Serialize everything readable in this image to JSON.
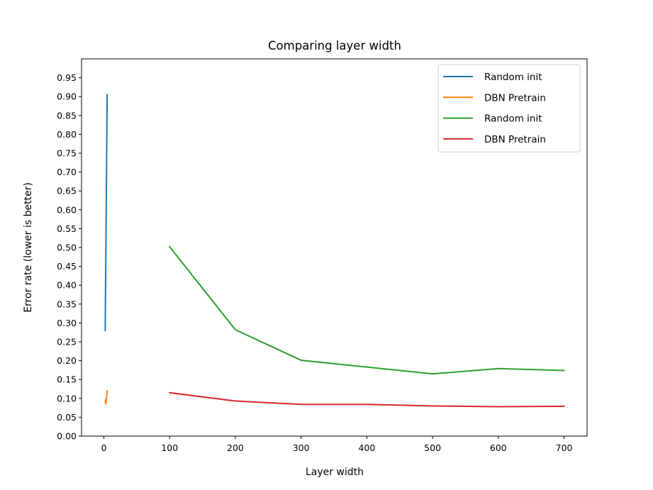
{
  "chart_data": {
    "type": "line",
    "title": "Comparing layer width",
    "xlabel": "Layer width",
    "ylabel": "Error rate (lower is better)",
    "xlim": [
      -34,
      735
    ],
    "ylim": [
      0.0,
      1.0
    ],
    "xticks": [
      0,
      100,
      200,
      300,
      400,
      500,
      600,
      700
    ],
    "xtick_labels": [
      "0",
      "100",
      "200",
      "300",
      "400",
      "500",
      "600",
      "700"
    ],
    "yticks": [
      0.0,
      0.05,
      0.1,
      0.15,
      0.2,
      0.25,
      0.3,
      0.35,
      0.4,
      0.45,
      0.5,
      0.55,
      0.6,
      0.65,
      0.7,
      0.75,
      0.8,
      0.85,
      0.9,
      0.95
    ],
    "ytick_labels": [
      "0.00",
      "0.05",
      "0.10",
      "0.15",
      "0.20",
      "0.25",
      "0.30",
      "0.35",
      "0.40",
      "0.45",
      "0.50",
      "0.55",
      "0.60",
      "0.65",
      "0.70",
      "0.75",
      "0.80",
      "0.85",
      "0.90",
      "0.95"
    ],
    "grid": false,
    "legend_position": "top-right",
    "series": [
      {
        "name": "Random init",
        "color": "#1f77b4",
        "x": [
          2,
          5
        ],
        "y": [
          0.28,
          0.905
        ]
      },
      {
        "name": "DBN Pretrain",
        "color": "#ff7f0e",
        "x": [
          2,
          3,
          5
        ],
        "y": [
          0.095,
          0.085,
          0.12
        ]
      },
      {
        "name": "Random init",
        "color": "#2ca02c",
        "x": [
          100,
          200,
          300,
          400,
          500,
          600,
          700
        ],
        "y": [
          0.502,
          0.282,
          0.201,
          0.183,
          0.165,
          0.179,
          0.174
        ]
      },
      {
        "name": "DBN Pretrain",
        "color": "#d62728",
        "x": [
          100,
          200,
          300,
          400,
          500,
          600,
          700
        ],
        "y": [
          0.115,
          0.093,
          0.084,
          0.084,
          0.08,
          0.078,
          0.079
        ]
      }
    ]
  }
}
